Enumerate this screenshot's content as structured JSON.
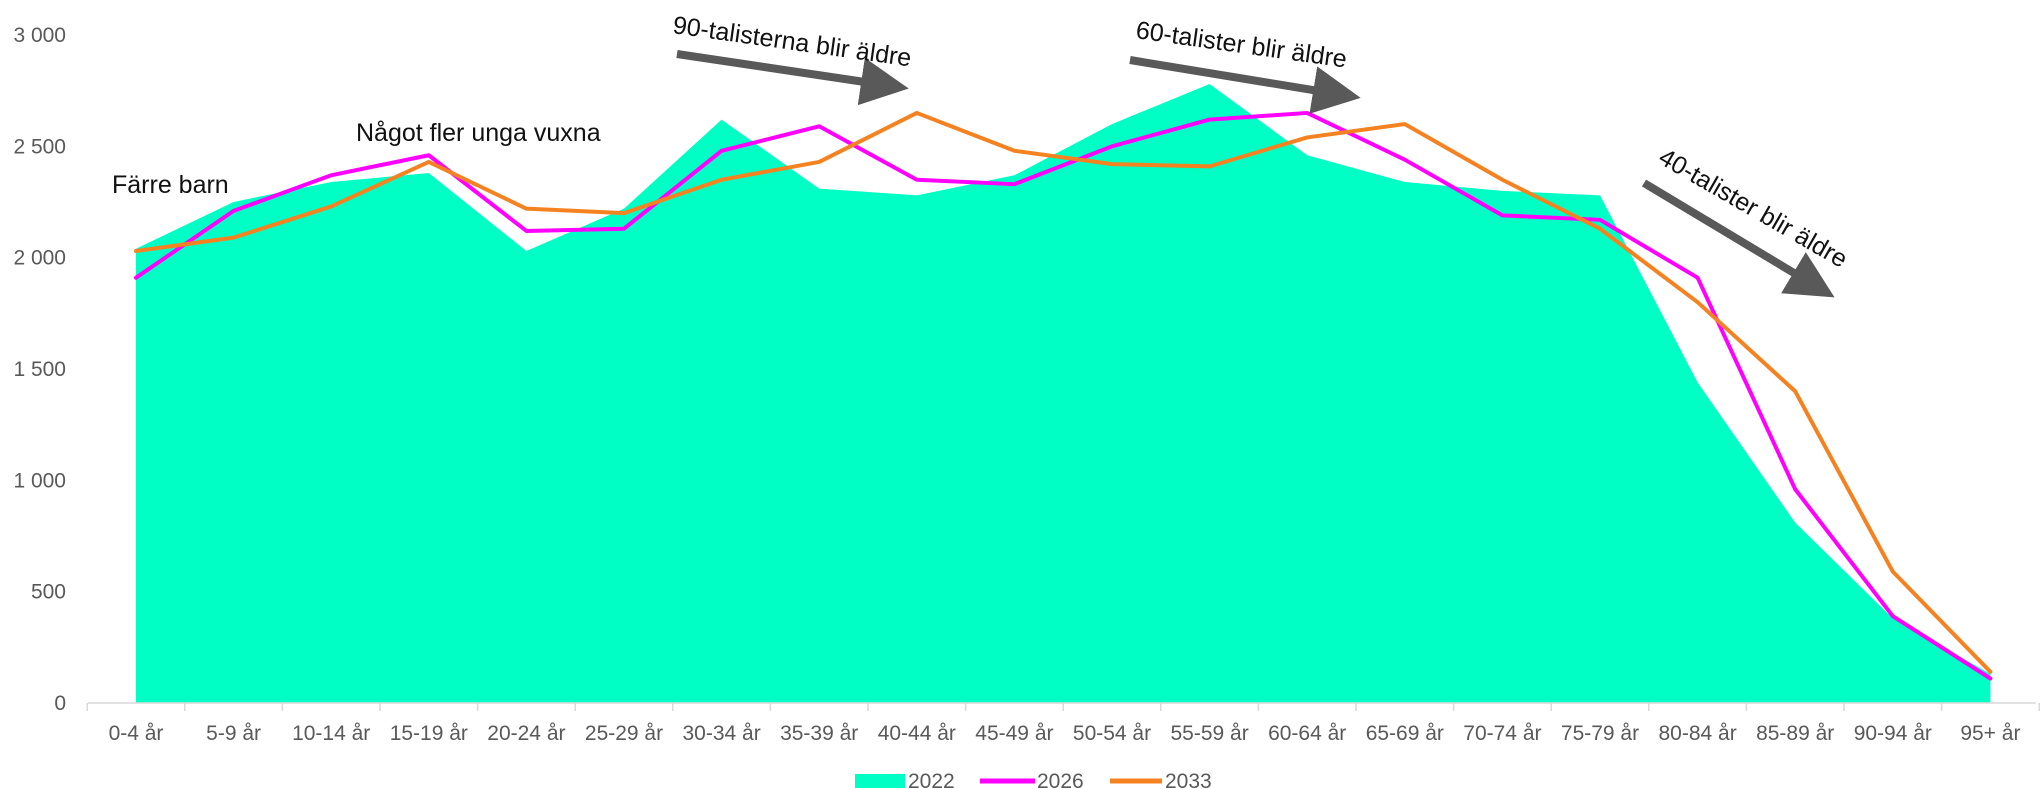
{
  "chart_data": {
    "type": "area",
    "categories": [
      "0-4 år",
      "5-9 år",
      "10-14 år",
      "15-19 år",
      "20-24 år",
      "25-29 år",
      "30-34 år",
      "35-39 år",
      "40-44 år",
      "45-49 år",
      "50-54 år",
      "55-59 år",
      "60-64 år",
      "65-69 år",
      "70-74 år",
      "75-79 år",
      "80-84 år",
      "85-89 år",
      "90-94 år",
      "95+ år"
    ],
    "ylim": [
      0,
      3000
    ],
    "yticks": [
      0,
      500,
      1000,
      1500,
      2000,
      2500,
      3000
    ],
    "ytick_labels": [
      "0",
      "500",
      "1 000",
      "1 500",
      "2 000",
      "2 500",
      "3 000"
    ],
    "grid": false,
    "legend_position": "bottom",
    "series": [
      {
        "name": "2022",
        "kind": "area",
        "color": "#00FFC5",
        "values": [
          2040,
          2250,
          2340,
          2380,
          2030,
          2220,
          2620,
          2310,
          2280,
          2370,
          2600,
          2780,
          2460,
          2340,
          2300,
          2280,
          1440,
          810,
          380,
          130
        ]
      },
      {
        "name": "2026",
        "kind": "line",
        "color": "#FF00FF",
        "values": [
          1910,
          2210,
          2370,
          2460,
          2120,
          2130,
          2480,
          2590,
          2350,
          2330,
          2500,
          2620,
          2650,
          2440,
          2190,
          2170,
          1910,
          960,
          390,
          110
        ]
      },
      {
        "name": "2033",
        "kind": "line",
        "color": "#F58220",
        "values": [
          2030,
          2090,
          2230,
          2430,
          2220,
          2200,
          2350,
          2430,
          2650,
          2480,
          2420,
          2410,
          2540,
          2600,
          2350,
          2130,
          1800,
          1400,
          590,
          140
        ]
      }
    ],
    "annotations": [
      {
        "id": "farre-barn",
        "text": "Färre barn"
      },
      {
        "id": "unga-vuxna",
        "text": "Något fler unga vuxna"
      },
      {
        "id": "90-tal",
        "text": "90-talisterna blir äldre"
      },
      {
        "id": "60-tal",
        "text": "60-talister blir äldre"
      },
      {
        "id": "40-tal",
        "text": "40-talister blir äldre"
      }
    ]
  }
}
